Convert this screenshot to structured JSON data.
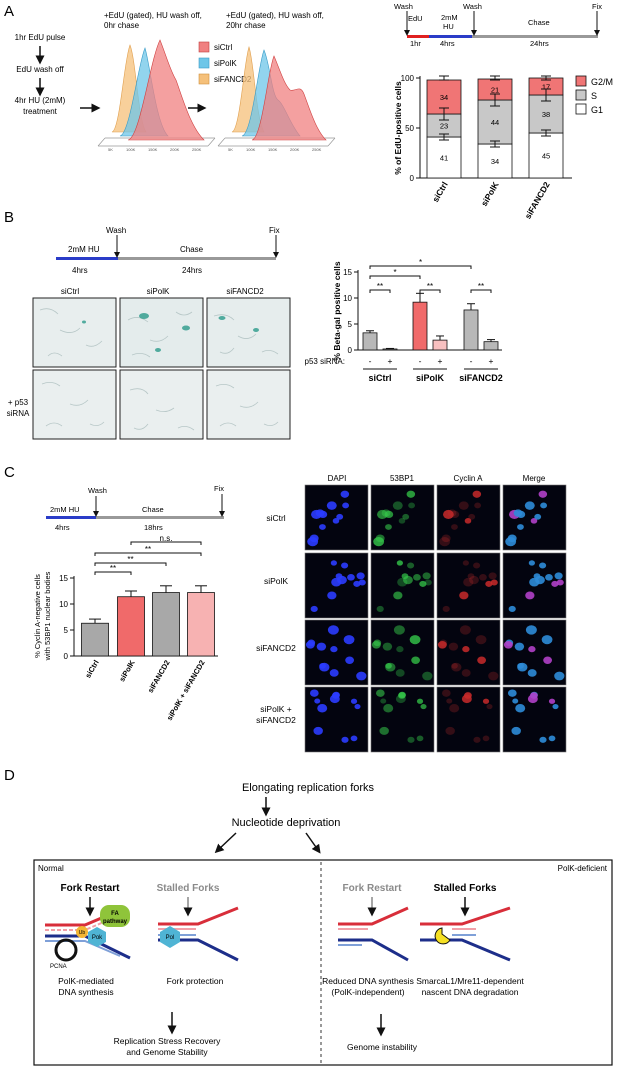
{
  "panels": {
    "A": {
      "letter": "A",
      "steps": [
        "1hr EdU pulse",
        "EdU wash off",
        "4hr HU (2mM)",
        "treatment"
      ],
      "hist1_title": [
        "+EdU (gated), HU wash off,",
        "0hr chase"
      ],
      "hist2_title": [
        "+EdU (gated), HU wash off,",
        "20hr chase"
      ],
      "legend": [
        {
          "name": "siCtrl",
          "color": "#f08080"
        },
        {
          "name": "siPolK",
          "color": "#6ec6e8"
        },
        {
          "name": "siFANCD2",
          "color": "#f5c07a"
        }
      ],
      "timeline": {
        "labels": [
          "EdU",
          "2mM",
          "HU",
          "Chase",
          "Wash",
          "Wash",
          "Fix"
        ],
        "durations": [
          "1hr",
          "4hrs",
          "24hrs"
        ]
      },
      "chart_data": {
        "type": "bar",
        "categories": [
          "siCtrl",
          "siPolK",
          "siFANCD2"
        ],
        "ylabel": "% of EdU-positive cells",
        "ylim": [
          0,
          100
        ],
        "yticks": [
          "0",
          "50",
          "100"
        ],
        "stacked": true,
        "legend_position": "right",
        "series": [
          {
            "name": "G1",
            "values": [
              41,
              34,
              45
            ],
            "color": "#ffffff"
          },
          {
            "name": "S",
            "values": [
              23,
              44,
              38
            ],
            "color": "#c8c8c8"
          },
          {
            "name": "G2/M",
            "values": [
              34,
              21,
              17
            ],
            "color": "#f07575"
          }
        ],
        "labels": [
          [
            "41",
            "23",
            "34"
          ],
          [
            "34",
            "44",
            "21"
          ],
          [
            "45",
            "38",
            "17"
          ]
        ]
      }
    },
    "B": {
      "letter": "B",
      "timeline": {
        "treat": "2mM HU",
        "treat_dur": "4hrs",
        "chase": "Chase",
        "chase_dur": "24hrs",
        "wash": "Wash",
        "fix": "Fix"
      },
      "col_labels": [
        "siCtrl",
        "siPolK",
        "siFANCD2"
      ],
      "row_label": [
        "+ p53",
        "siRNA"
      ],
      "chart_data": {
        "type": "bar",
        "categories": [
          "siCtrl -",
          "siCtrl +",
          "siPolK -",
          "siPolK +",
          "siFANCD2 -",
          "siFANCD2 +"
        ],
        "groups": [
          "siCtrl",
          "siPolK",
          "siFANCD2"
        ],
        "p53": [
          "-",
          "+",
          "-",
          "+",
          "-",
          "+"
        ],
        "p53_label": "p53 siRNA:",
        "values": [
          3.3,
          0.2,
          9.2,
          1.9,
          7.7,
          1.6
        ],
        "errors": [
          0.4,
          0.1,
          1.7,
          0.8,
          1.2,
          0.4
        ],
        "colors": [
          "#b8b8b8",
          "#b8b8b8",
          "#f06a6a",
          "#f8c0c0",
          "#b8b8b8",
          "#b8b8b8"
        ],
        "ylabel": "% Beta-gal positive cells",
        "ylim": [
          0,
          15
        ],
        "yticks": [
          "0",
          "5",
          "10",
          "15"
        ],
        "significance": [
          "**",
          "*",
          "*",
          "**",
          "**"
        ]
      }
    },
    "C": {
      "letter": "C",
      "timeline": {
        "treat": "2mM HU",
        "treat_dur": "4hrs",
        "chase": "Chase",
        "chase_dur": "18hrs",
        "wash": "Wash",
        "fix": "Fix"
      },
      "chart_data": {
        "type": "bar",
        "categories": [
          "siCtrl",
          "siPolK",
          "siFANCD2",
          "siPolK + siFANCD2"
        ],
        "values": [
          6.3,
          11.4,
          12.2,
          12.2
        ],
        "errors": [
          0.8,
          1.1,
          1.3,
          1.3
        ],
        "colors": [
          "#a8a8a8",
          "#f06a6a",
          "#a8a8a8",
          "#f7b2b2"
        ],
        "ylabel": [
          "% Cyclin A-negative cells",
          "with 53BP1 nuclear bodies"
        ],
        "ylim": [
          0,
          15
        ],
        "yticks": [
          "0",
          "5",
          "10",
          "15"
        ],
        "significance": [
          "**",
          "**",
          "**",
          "n.s."
        ]
      },
      "col_labels": [
        "DAPI",
        "53BP1",
        "Cyclin A",
        "Merge"
      ],
      "row_labels": [
        "siCtrl",
        "siPolK",
        "siFANCD2",
        "siPolK +",
        "siFANCD2"
      ]
    },
    "D": {
      "letter": "D",
      "top": "Elongating replication forks",
      "mid": "Nucleotide deprivation",
      "normal_label": "Normal",
      "deficient_label": "PolK-deficient",
      "col1_title": "Fork Restart",
      "col2_title": "Stalled Forks",
      "col3_title": "Fork Restart",
      "col4_title": "Stalled Forks",
      "fa": [
        "FA",
        "pathway"
      ],
      "pcna": "PCNA",
      "pok": "Pok",
      "ub": "Ub",
      "col1_caption": [
        "PolK-mediated",
        "DNA synthesis"
      ],
      "col2_caption": [
        "Fork protection"
      ],
      "col3_caption": [
        "Reduced DNA synthesis",
        "(PolK-independent)"
      ],
      "col4_caption": [
        "SmarcaL1/Mre11-dependent",
        "nascent DNA degradation"
      ],
      "left_outcome": [
        "Replication Stress Recovery",
        "and Genome Stability"
      ],
      "right_outcome": [
        "Genome instability"
      ]
    }
  }
}
